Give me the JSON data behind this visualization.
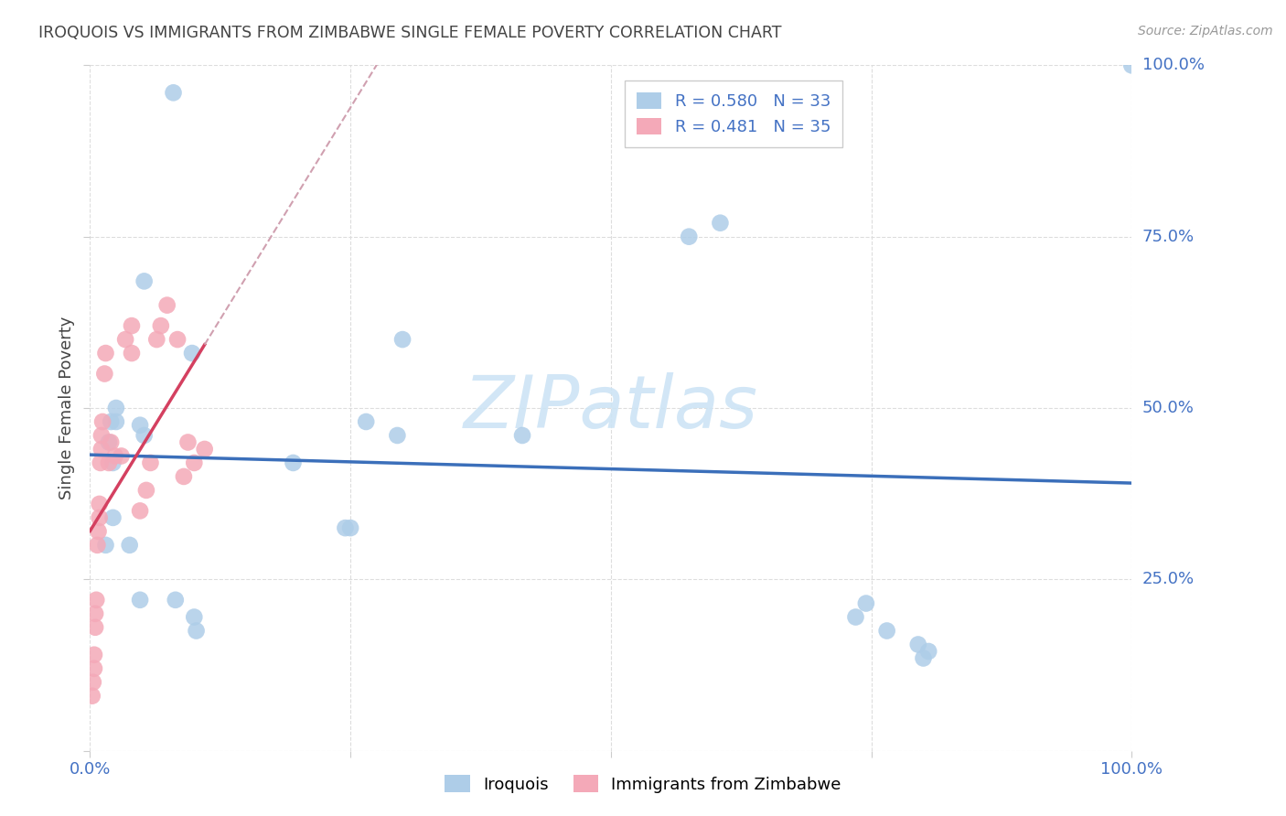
{
  "title": "IROQUOIS VS IMMIGRANTS FROM ZIMBABWE SINGLE FEMALE POVERTY CORRELATION CHART",
  "source": "Source: ZipAtlas.com",
  "ylabel": "Single Female Poverty",
  "iroquois_color": "#aecde8",
  "zimbabwe_color": "#f4a9b8",
  "iroquois_line_color": "#3b6fba",
  "zimbabwe_line_color": "#d44060",
  "zimbabwe_line_dashed_color": "#d0a0b0",
  "background_color": "#ffffff",
  "grid_color": "#dddddd",
  "title_color": "#444444",
  "source_color": "#999999",
  "axis_label_color": "#4472c4",
  "R_iroquois": 0.58,
  "N_iroquois": 33,
  "R_zimbabwe": 0.481,
  "N_zimbabwe": 35,
  "iroquois_x": [
    1.5,
    8.0,
    2.0,
    1.8,
    2.2,
    2.5,
    2.5,
    2.2,
    3.8,
    4.8,
    4.8,
    5.2,
    5.2,
    8.2,
    10.0,
    10.2,
    9.8,
    19.5,
    24.5,
    25.0,
    26.5,
    29.5,
    30.0,
    41.5,
    57.5,
    60.5,
    73.5,
    74.5,
    76.5,
    79.5,
    80.0,
    80.5,
    100.0
  ],
  "iroquois_y": [
    30.0,
    96.0,
    48.0,
    45.0,
    34.0,
    48.0,
    50.0,
    42.0,
    30.0,
    22.0,
    47.5,
    46.0,
    68.5,
    22.0,
    19.5,
    17.5,
    58.0,
    42.0,
    32.5,
    32.5,
    48.0,
    46.0,
    60.0,
    46.0,
    75.0,
    77.0,
    19.5,
    21.5,
    17.5,
    15.5,
    13.5,
    14.5,
    100.0
  ],
  "zimbabwe_x": [
    0.2,
    0.3,
    0.4,
    0.4,
    0.5,
    0.5,
    0.6,
    0.7,
    0.8,
    0.9,
    0.9,
    1.0,
    1.1,
    1.1,
    1.2,
    1.4,
    1.5,
    1.8,
    2.0,
    2.4,
    3.0,
    3.4,
    4.0,
    4.0,
    4.8,
    5.4,
    5.8,
    6.4,
    6.8,
    7.4,
    8.4,
    9.0,
    9.4,
    10.0,
    11.0
  ],
  "zimbabwe_y": [
    8.0,
    10.0,
    12.0,
    14.0,
    18.0,
    20.0,
    22.0,
    30.0,
    32.0,
    34.0,
    36.0,
    42.0,
    44.0,
    46.0,
    48.0,
    55.0,
    58.0,
    42.0,
    45.0,
    43.0,
    43.0,
    60.0,
    62.0,
    58.0,
    35.0,
    38.0,
    42.0,
    60.0,
    62.0,
    65.0,
    60.0,
    40.0,
    45.0,
    42.0,
    44.0
  ]
}
